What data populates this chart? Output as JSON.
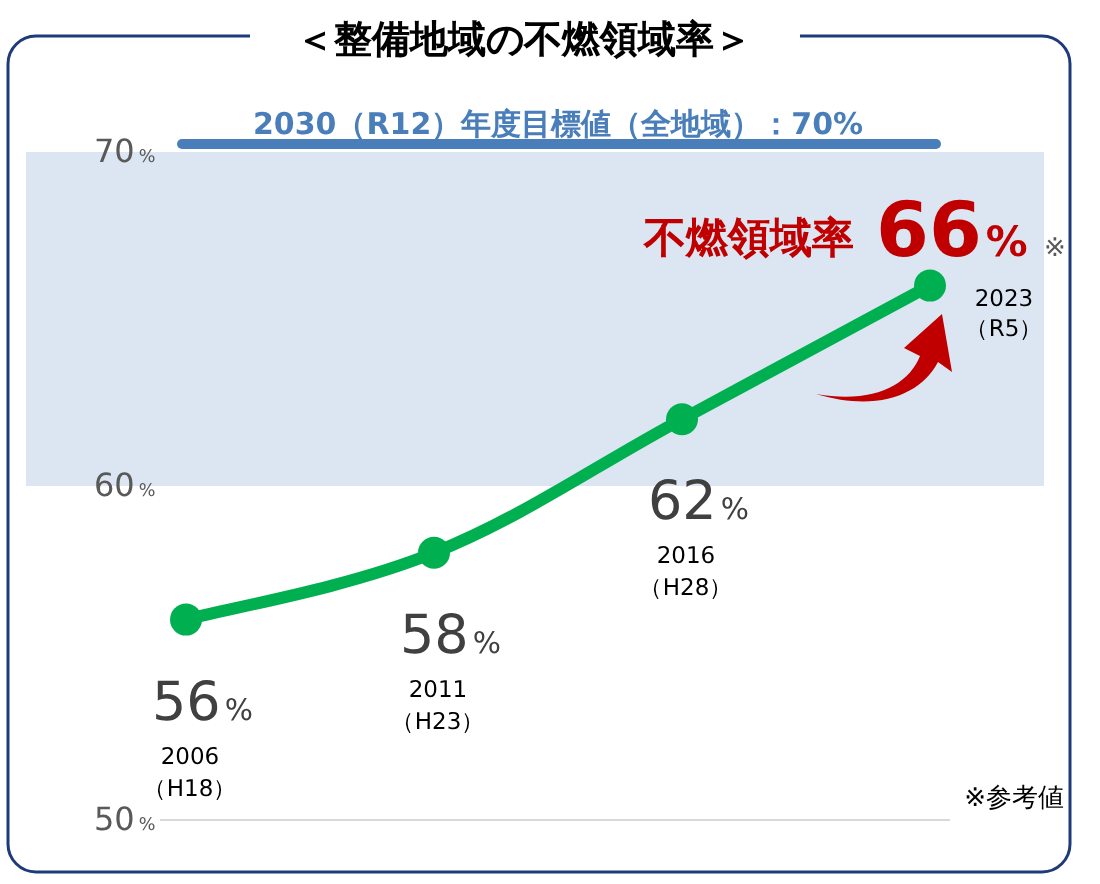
{
  "chart_data": {
    "type": "line",
    "title": "＜整備地域の不燃領域率＞",
    "categories": [
      "2006\n（H18）",
      "2011\n（H23）",
      "2016\n（H28）",
      "2023\n（R5）"
    ],
    "series": [
      {
        "color": "#00b050",
        "values": [
          56,
          58,
          62,
          66
        ],
        "value_labels": [
          "56%",
          "58%",
          "62%",
          "66%"
        ]
      }
    ],
    "ylim": [
      50,
      70
    ],
    "yticks": [
      {
        "value": 50,
        "label": "50%"
      },
      {
        "value": 60,
        "label": "60%"
      },
      {
        "value": 70,
        "label": "70%"
      }
    ],
    "bands": [
      {
        "axis": "y",
        "from": 60,
        "to": 70,
        "color": "#dce6f2"
      }
    ],
    "ref_lines": [
      {
        "axis": "y",
        "value": 70,
        "label": "2030（R12）年度目標値（全地域）：70%",
        "color": "#4a7ebb"
      }
    ],
    "annotations": [
      {
        "text": "不燃領域率",
        "x": "2023\n（R5）",
        "y": 66
      },
      "※",
      "※参考値"
    ],
    "marker": "circle",
    "line_style": "solid",
    "grid": false
  }
}
